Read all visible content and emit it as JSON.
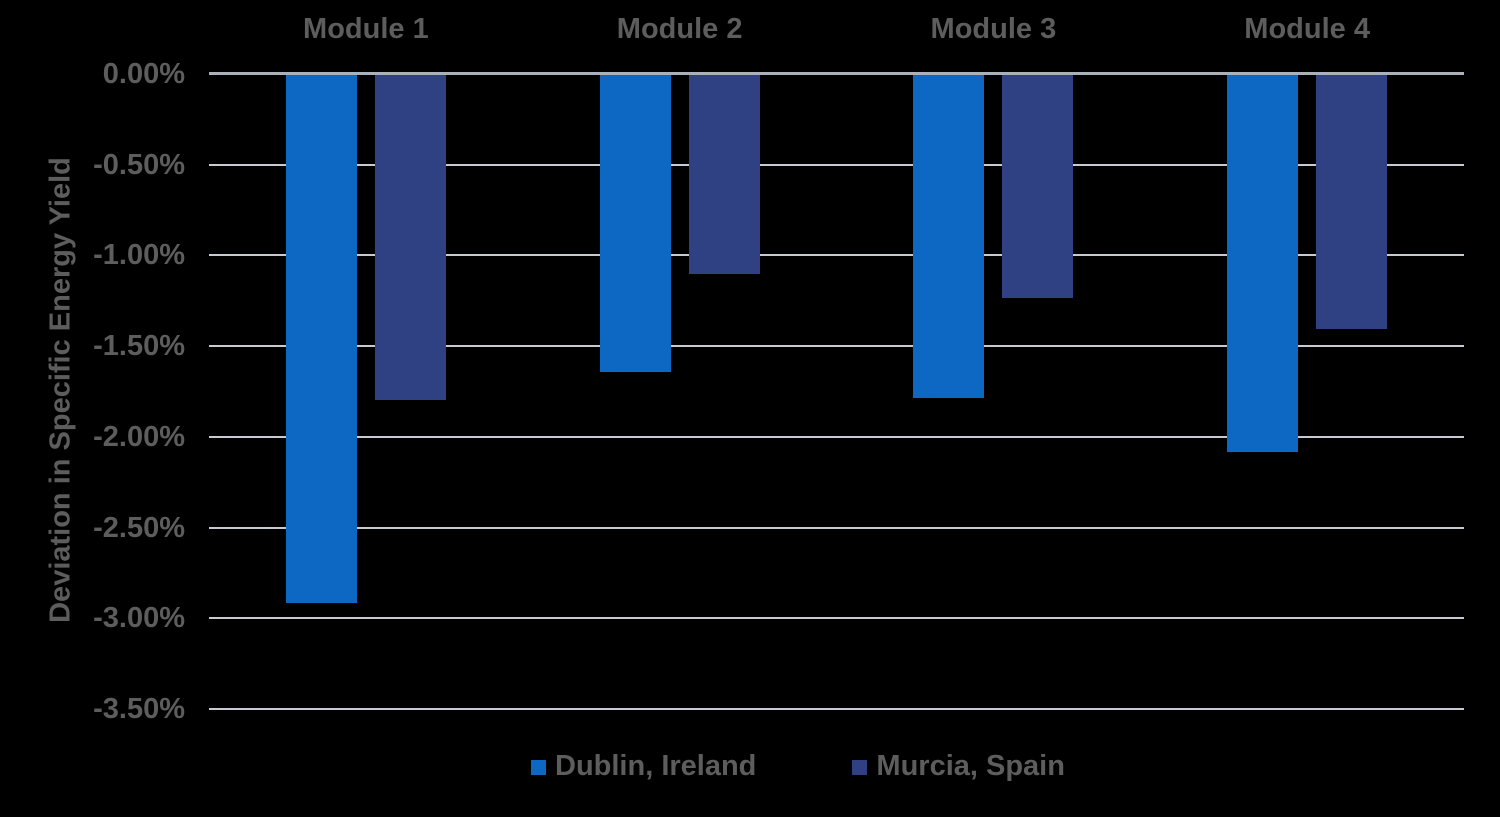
{
  "chart_data": {
    "type": "bar",
    "title": "",
    "categories": [
      "Module 1",
      "Module 2",
      "Module 3",
      "Module 4"
    ],
    "series": [
      {
        "name": "Dublin, Ireland",
        "color": "#0d68c3",
        "values": [
          -2.92,
          -1.65,
          -1.79,
          -2.09
        ]
      },
      {
        "name": "Murcia, Spain",
        "color": "#2f4182",
        "values": [
          -1.8,
          -1.11,
          -1.24,
          -1.41
        ]
      }
    ],
    "xlabel": "",
    "ylabel": "Deviation in Specific Energy Yield",
    "ylim": [
      -3.5,
      0
    ],
    "ytick_step": 0.5,
    "ytick_labels": [
      "0.00%",
      "-0.50%",
      "-1.00%",
      "-1.50%",
      "-2.00%",
      "-2.50%",
      "-3.00%",
      "-3.50%"
    ],
    "grid": true,
    "legend_position": "bottom",
    "category_labels_position": "top"
  },
  "colors": {
    "background": "#000000",
    "text": "#5d5d5d",
    "gridline": "#c6cbd1",
    "zero_line": "#aab1b8",
    "series_dublin": "#0d68c3",
    "series_murcia": "#2f4182"
  }
}
